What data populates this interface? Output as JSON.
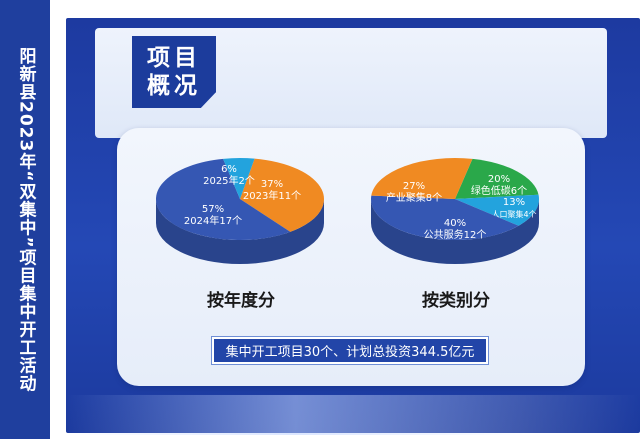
{
  "sidebar": {
    "title": "阳新县2023年“双集中”项目集中开工活动"
  },
  "header": {
    "title_line1": "项目",
    "title_line2": "概况"
  },
  "charts": [
    {
      "caption": "按年度分",
      "slices": [
        {
          "pct": "37%",
          "label": "2023年11个",
          "value": 37,
          "color": "#f08a22"
        },
        {
          "pct": "57%",
          "label": "2024年17个",
          "value": 57,
          "color": "#3557b3"
        },
        {
          "pct": "6%",
          "label": "2025年2个",
          "value": 6,
          "color": "#23a3dd"
        }
      ]
    },
    {
      "caption": "按类别分",
      "slices": [
        {
          "pct": "20%",
          "label": "绿色低碳6个",
          "value": 20,
          "color": "#2aa84a"
        },
        {
          "pct": "13%",
          "label": "人口聚集4个",
          "value": 13,
          "color": "#23a3dd"
        },
        {
          "pct": "40%",
          "label": "公共服务12个",
          "value": 40,
          "color": "#3557b3"
        },
        {
          "pct": "27%",
          "label": "产业聚集8个",
          "value": 27,
          "color": "#f08a22"
        }
      ]
    }
  ],
  "summary": "集中开工项目30个、计划总投资344.5亿元",
  "chart_data": [
    {
      "type": "pie",
      "title": "按年度分",
      "categories": [
        "2023年11个",
        "2024年17个",
        "2025年2个"
      ],
      "values": [
        37,
        57,
        6
      ]
    },
    {
      "type": "pie",
      "title": "按类别分",
      "categories": [
        "绿色低碳6个",
        "人口聚集4个",
        "公共服务12个",
        "产业聚集8个"
      ],
      "values": [
        20,
        13,
        40,
        27
      ]
    }
  ]
}
